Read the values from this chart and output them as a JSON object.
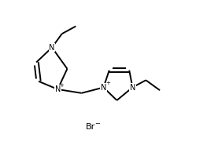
{
  "bg_color": "#ffffff",
  "line_color": "#000000",
  "font_color": "#000000",
  "line_width": 1.4,
  "fig_width": 2.63,
  "fig_height": 1.94,
  "dpi": 100,
  "font_size_atom": 7.0,
  "font_size_charge": 5.0,
  "font_size_br": 8.0,
  "xlim": [
    0,
    10
  ],
  "ylim": [
    0,
    8
  ]
}
